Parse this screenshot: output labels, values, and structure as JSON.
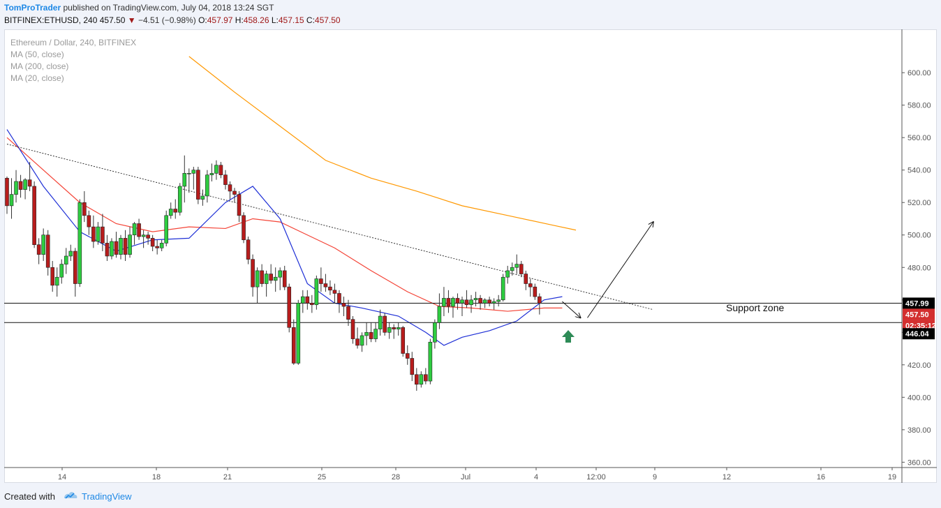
{
  "header": {
    "author": "TomProTrader",
    "published": " published on TradingView.com, July 04, 2018 13:24 SGT",
    "symbol": "BITFINEX:ETHUSD, 240",
    "last": "457.50",
    "change": "−4.51 (−0.98%)",
    "o_label": "O:",
    "o_val": "457.97",
    "h_label": "H:",
    "h_val": "458.26",
    "l_label": "L:",
    "l_val": "457.15",
    "c_label": "C:",
    "c_val": "457.50"
  },
  "footer": {
    "created": "Created with",
    "brand": "TradingView"
  },
  "colors": {
    "up": "#2ecc40",
    "down": "#b71c1c",
    "ma50": "#f44336",
    "ma200": "#ff9800",
    "ma20": "#1e2fd6",
    "price_label": "#000000",
    "last_label": "#d32f2f",
    "arrow_green": "#2e8b57"
  },
  "chart_data": {
    "type": "candlestick",
    "title": "Ethereum / Dollar, 240, BITFINEX",
    "legend": [
      "MA (50, close)",
      "MA (200, close)",
      "MA (20, close)"
    ],
    "ylim": [
      355,
      625
    ],
    "y_ticks": [
      "600.00",
      "580.00",
      "560.00",
      "540.00",
      "520.00",
      "500.00",
      "480.00",
      "460.00",
      "440.00",
      "420.00",
      "400.00",
      "380.00",
      "360.00"
    ],
    "x_ticks": [
      "14",
      "18",
      "21",
      "25",
      "28",
      "Jul",
      "4",
      "12:00",
      "9",
      "12",
      "16",
      "19"
    ],
    "candles": [
      {
        "o": 535,
        "h": 536,
        "l": 513,
        "c": 518
      },
      {
        "o": 518,
        "h": 535,
        "l": 510,
        "c": 525
      },
      {
        "o": 525,
        "h": 540,
        "l": 520,
        "c": 533
      },
      {
        "o": 533,
        "h": 537,
        "l": 523,
        "c": 528
      },
      {
        "o": 528,
        "h": 535,
        "l": 522,
        "c": 534
      },
      {
        "o": 534,
        "h": 545,
        "l": 527,
        "c": 530
      },
      {
        "o": 530,
        "h": 533,
        "l": 492,
        "c": 494
      },
      {
        "o": 494,
        "h": 498,
        "l": 482,
        "c": 488
      },
      {
        "o": 488,
        "h": 504,
        "l": 484,
        "c": 500
      },
      {
        "o": 500,
        "h": 503,
        "l": 475,
        "c": 480
      },
      {
        "o": 480,
        "h": 484,
        "l": 465,
        "c": 469
      },
      {
        "o": 469,
        "h": 480,
        "l": 462,
        "c": 474
      },
      {
        "o": 474,
        "h": 485,
        "l": 470,
        "c": 482
      },
      {
        "o": 482,
        "h": 492,
        "l": 476,
        "c": 487
      },
      {
        "o": 487,
        "h": 494,
        "l": 484,
        "c": 490
      },
      {
        "o": 490,
        "h": 492,
        "l": 462,
        "c": 470
      },
      {
        "o": 470,
        "h": 522,
        "l": 468,
        "c": 520
      },
      {
        "o": 520,
        "h": 527,
        "l": 508,
        "c": 512
      },
      {
        "o": 512,
        "h": 515,
        "l": 500,
        "c": 505
      },
      {
        "o": 505,
        "h": 512,
        "l": 492,
        "c": 496
      },
      {
        "o": 496,
        "h": 508,
        "l": 494,
        "c": 505
      },
      {
        "o": 505,
        "h": 513,
        "l": 490,
        "c": 495
      },
      {
        "o": 495,
        "h": 500,
        "l": 484,
        "c": 487
      },
      {
        "o": 487,
        "h": 498,
        "l": 485,
        "c": 496
      },
      {
        "o": 496,
        "h": 502,
        "l": 486,
        "c": 488
      },
      {
        "o": 488,
        "h": 500,
        "l": 485,
        "c": 498
      },
      {
        "o": 498,
        "h": 503,
        "l": 484,
        "c": 488
      },
      {
        "o": 488,
        "h": 505,
        "l": 486,
        "c": 500
      },
      {
        "o": 500,
        "h": 508,
        "l": 494,
        "c": 507
      },
      {
        "o": 507,
        "h": 510,
        "l": 497,
        "c": 499
      },
      {
        "o": 499,
        "h": 503,
        "l": 492,
        "c": 500
      },
      {
        "o": 500,
        "h": 502,
        "l": 494,
        "c": 498
      },
      {
        "o": 498,
        "h": 500,
        "l": 490,
        "c": 493
      },
      {
        "o": 493,
        "h": 497,
        "l": 488,
        "c": 492
      },
      {
        "o": 492,
        "h": 497,
        "l": 490,
        "c": 495
      },
      {
        "o": 495,
        "h": 515,
        "l": 493,
        "c": 512
      },
      {
        "o": 512,
        "h": 520,
        "l": 510,
        "c": 516
      },
      {
        "o": 516,
        "h": 522,
        "l": 510,
        "c": 514
      },
      {
        "o": 514,
        "h": 532,
        "l": 512,
        "c": 530
      },
      {
        "o": 530,
        "h": 549,
        "l": 520,
        "c": 538
      },
      {
        "o": 538,
        "h": 541,
        "l": 526,
        "c": 538
      },
      {
        "o": 538,
        "h": 542,
        "l": 528,
        "c": 540
      },
      {
        "o": 540,
        "h": 542,
        "l": 519,
        "c": 522
      },
      {
        "o": 522,
        "h": 528,
        "l": 518,
        "c": 524
      },
      {
        "o": 524,
        "h": 540,
        "l": 520,
        "c": 537
      },
      {
        "o": 537,
        "h": 544,
        "l": 533,
        "c": 538
      },
      {
        "o": 538,
        "h": 546,
        "l": 534,
        "c": 543
      },
      {
        "o": 543,
        "h": 545,
        "l": 535,
        "c": 537
      },
      {
        "o": 537,
        "h": 540,
        "l": 528,
        "c": 531
      },
      {
        "o": 531,
        "h": 533,
        "l": 522,
        "c": 527
      },
      {
        "o": 527,
        "h": 529,
        "l": 520,
        "c": 525
      },
      {
        "o": 525,
        "h": 527,
        "l": 508,
        "c": 512
      },
      {
        "o": 512,
        "h": 514,
        "l": 495,
        "c": 497
      },
      {
        "o": 497,
        "h": 499,
        "l": 482,
        "c": 485
      },
      {
        "o": 485,
        "h": 488,
        "l": 462,
        "c": 468
      },
      {
        "o": 468,
        "h": 480,
        "l": 458,
        "c": 478
      },
      {
        "o": 478,
        "h": 482,
        "l": 468,
        "c": 470
      },
      {
        "o": 470,
        "h": 478,
        "l": 462,
        "c": 476
      },
      {
        "o": 476,
        "h": 482,
        "l": 470,
        "c": 472
      },
      {
        "o": 472,
        "h": 480,
        "l": 465,
        "c": 474
      },
      {
        "o": 474,
        "h": 480,
        "l": 466,
        "c": 478
      },
      {
        "o": 478,
        "h": 481,
        "l": 466,
        "c": 468
      },
      {
        "o": 468,
        "h": 470,
        "l": 440,
        "c": 443
      },
      {
        "o": 443,
        "h": 448,
        "l": 420,
        "c": 421
      },
      {
        "o": 421,
        "h": 460,
        "l": 420,
        "c": 458
      },
      {
        "o": 458,
        "h": 466,
        "l": 452,
        "c": 462
      },
      {
        "o": 462,
        "h": 466,
        "l": 454,
        "c": 458
      },
      {
        "o": 458,
        "h": 463,
        "l": 452,
        "c": 457
      },
      {
        "o": 457,
        "h": 475,
        "l": 454,
        "c": 473
      },
      {
        "o": 473,
        "h": 480,
        "l": 465,
        "c": 470
      },
      {
        "o": 470,
        "h": 476,
        "l": 465,
        "c": 468
      },
      {
        "o": 468,
        "h": 472,
        "l": 463,
        "c": 466
      },
      {
        "o": 466,
        "h": 470,
        "l": 458,
        "c": 464
      },
      {
        "o": 464,
        "h": 466,
        "l": 452,
        "c": 458
      },
      {
        "o": 458,
        "h": 462,
        "l": 450,
        "c": 456
      },
      {
        "o": 456,
        "h": 460,
        "l": 444,
        "c": 448
      },
      {
        "o": 448,
        "h": 450,
        "l": 433,
        "c": 436
      },
      {
        "o": 436,
        "h": 443,
        "l": 430,
        "c": 432
      },
      {
        "o": 432,
        "h": 440,
        "l": 428,
        "c": 438
      },
      {
        "o": 438,
        "h": 446,
        "l": 432,
        "c": 440
      },
      {
        "o": 440,
        "h": 446,
        "l": 434,
        "c": 436
      },
      {
        "o": 436,
        "h": 446,
        "l": 434,
        "c": 442
      },
      {
        "o": 442,
        "h": 454,
        "l": 438,
        "c": 450
      },
      {
        "o": 450,
        "h": 452,
        "l": 438,
        "c": 440
      },
      {
        "o": 440,
        "h": 446,
        "l": 436,
        "c": 443
      },
      {
        "o": 443,
        "h": 445,
        "l": 436,
        "c": 442
      },
      {
        "o": 442,
        "h": 446,
        "l": 438,
        "c": 443
      },
      {
        "o": 443,
        "h": 444,
        "l": 425,
        "c": 427
      },
      {
        "o": 427,
        "h": 432,
        "l": 420,
        "c": 424
      },
      {
        "o": 424,
        "h": 428,
        "l": 410,
        "c": 414
      },
      {
        "o": 414,
        "h": 418,
        "l": 404,
        "c": 408
      },
      {
        "o": 408,
        "h": 416,
        "l": 406,
        "c": 414
      },
      {
        "o": 414,
        "h": 418,
        "l": 408,
        "c": 410
      },
      {
        "o": 410,
        "h": 436,
        "l": 408,
        "c": 434
      },
      {
        "o": 434,
        "h": 448,
        "l": 430,
        "c": 446
      },
      {
        "o": 446,
        "h": 464,
        "l": 442,
        "c": 456
      },
      {
        "o": 456,
        "h": 468,
        "l": 450,
        "c": 461
      },
      {
        "o": 461,
        "h": 466,
        "l": 452,
        "c": 456
      },
      {
        "o": 456,
        "h": 462,
        "l": 449,
        "c": 461
      },
      {
        "o": 461,
        "h": 464,
        "l": 454,
        "c": 458
      },
      {
        "o": 458,
        "h": 462,
        "l": 450,
        "c": 460
      },
      {
        "o": 460,
        "h": 466,
        "l": 455,
        "c": 457
      },
      {
        "o": 457,
        "h": 463,
        "l": 452,
        "c": 460
      },
      {
        "o": 460,
        "h": 465,
        "l": 456,
        "c": 461
      },
      {
        "o": 461,
        "h": 463,
        "l": 454,
        "c": 458
      },
      {
        "o": 458,
        "h": 461,
        "l": 455,
        "c": 460
      },
      {
        "o": 460,
        "h": 462,
        "l": 456,
        "c": 458
      },
      {
        "o": 458,
        "h": 461,
        "l": 454,
        "c": 459
      },
      {
        "o": 459,
        "h": 463,
        "l": 456,
        "c": 460
      },
      {
        "o": 460,
        "h": 476,
        "l": 459,
        "c": 474
      },
      {
        "o": 474,
        "h": 481,
        "l": 470,
        "c": 478
      },
      {
        "o": 478,
        "h": 483,
        "l": 475,
        "c": 480
      },
      {
        "o": 480,
        "h": 488,
        "l": 476,
        "c": 482
      },
      {
        "o": 482,
        "h": 484,
        "l": 474,
        "c": 476
      },
      {
        "o": 476,
        "h": 478,
        "l": 466,
        "c": 470
      },
      {
        "o": 470,
        "h": 473,
        "l": 462,
        "c": 468
      },
      {
        "o": 468,
        "h": 470,
        "l": 460,
        "c": 462
      },
      {
        "o": 462,
        "h": 464,
        "l": 451,
        "c": 458
      }
    ],
    "ma20": [
      [
        0,
        565
      ],
      [
        8,
        530
      ],
      [
        16,
        502
      ],
      [
        24,
        490
      ],
      [
        32,
        497
      ],
      [
        40,
        498
      ],
      [
        48,
        520
      ],
      [
        54,
        530
      ],
      [
        60,
        510
      ],
      [
        66,
        470
      ],
      [
        72,
        458
      ],
      [
        78,
        455
      ],
      [
        86,
        450
      ],
      [
        92,
        440
      ],
      [
        96,
        432
      ],
      [
        100,
        437
      ],
      [
        106,
        441
      ],
      [
        112,
        447
      ],
      [
        118,
        460
      ],
      [
        122,
        462
      ]
    ],
    "ma50": [
      [
        0,
        560
      ],
      [
        8,
        540
      ],
      [
        16,
        520
      ],
      [
        24,
        507
      ],
      [
        32,
        502
      ],
      [
        40,
        505
      ],
      [
        48,
        504
      ],
      [
        54,
        510
      ],
      [
        60,
        508
      ],
      [
        66,
        500
      ],
      [
        72,
        492
      ],
      [
        80,
        478
      ],
      [
        88,
        465
      ],
      [
        95,
        456
      ],
      [
        102,
        455
      ],
      [
        110,
        453
      ],
      [
        118,
        455
      ],
      [
        122,
        455
      ]
    ],
    "ma200": [
      [
        40,
        610
      ],
      [
        50,
        588
      ],
      [
        60,
        567
      ],
      [
        70,
        546
      ],
      [
        80,
        535
      ],
      [
        90,
        527
      ],
      [
        100,
        518
      ],
      [
        110,
        512
      ],
      [
        120,
        506
      ],
      [
        125,
        503
      ]
    ],
    "trendline": {
      "x0": 0,
      "y0": 556,
      "x1": 142,
      "y1": 454
    },
    "support_top": 457.99,
    "support_bottom": 446.04,
    "support_label": "Support zone",
    "price_labels": {
      "resistance": "457.99",
      "last": "457.50",
      "countdown": "02:35:12",
      "support": "446.04"
    },
    "projection": [
      [
        122,
        459
      ],
      [
        126,
        449
      ],
      [
        142,
        508
      ]
    ]
  }
}
